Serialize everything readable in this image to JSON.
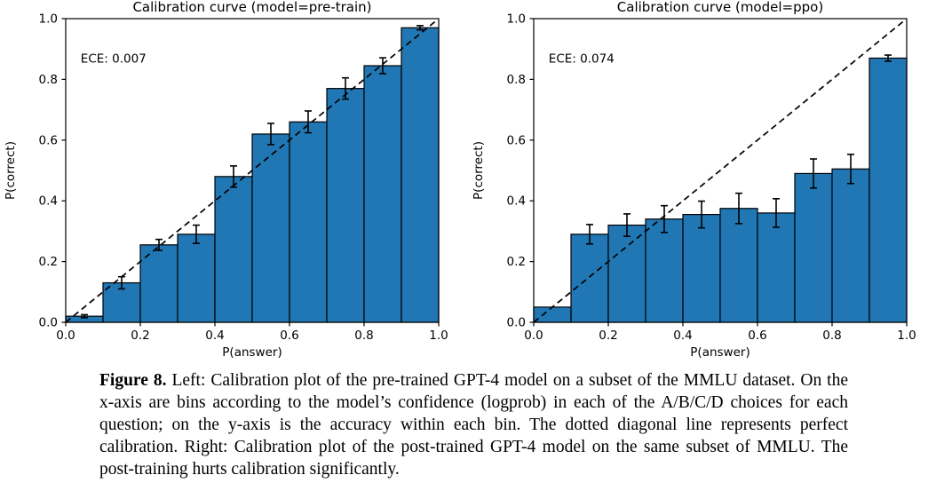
{
  "page": {
    "background": "#ffffff"
  },
  "caption": {
    "label": "Figure 8.",
    "text": "Left: Calibration plot of the pre-trained GPT-4 model on a subset of the MMLU dataset. On the x-axis are bins according to the model’s confidence (logprob) in each of the A/B/C/D choices for each question; on the y-axis is the accuracy within each bin. The dotted diagonal line represents perfect calibration. Right: Calibration plot of the post-trained GPT-4 model on the same subset of MMLU. The post-training hurts calibration significantly."
  },
  "chart_data": [
    {
      "type": "bar",
      "title": "Calibration curve (model=pre-train)",
      "annotation": "ECE: 0.007",
      "xlabel": "P(answer)",
      "ylabel": "P(correct)",
      "xlim": [
        0,
        1
      ],
      "ylim": [
        0,
        1
      ],
      "grid": false,
      "legend_position": "none",
      "diagonal_line": true,
      "bin_edges": [
        0,
        0.1,
        0.2,
        0.3,
        0.4,
        0.5,
        0.6,
        0.7,
        0.8,
        0.9,
        1.0
      ],
      "values": [
        0.02,
        0.13,
        0.255,
        0.29,
        0.48,
        0.62,
        0.66,
        0.77,
        0.845,
        0.97
      ],
      "errors": [
        0.005,
        0.02,
        0.018,
        0.03,
        0.035,
        0.035,
        0.036,
        0.035,
        0.026,
        0.007
      ],
      "xticks": [
        0,
        0.2,
        0.4,
        0.6,
        0.8,
        1.0
      ],
      "xtick_labels": [
        "0.0",
        "0.2",
        "0.4",
        "0.6",
        "0.8",
        "1.0"
      ],
      "yticks": [
        0,
        0.2,
        0.4,
        0.6,
        0.8,
        1.0
      ],
      "ytick_labels": [
        "0.0",
        "0.2",
        "0.4",
        "0.6",
        "0.8",
        "1.0"
      ],
      "bar_color": "#2077b4",
      "edge_color": "#000000"
    },
    {
      "type": "bar",
      "title": "Calibration curve (model=ppo)",
      "annotation": "ECE: 0.074",
      "xlabel": "P(answer)",
      "ylabel": "P(correct)",
      "xlim": [
        0,
        1
      ],
      "ylim": [
        0,
        1
      ],
      "grid": false,
      "legend_position": "none",
      "diagonal_line": true,
      "bin_edges": [
        0,
        0.1,
        0.2,
        0.3,
        0.4,
        0.5,
        0.6,
        0.7,
        0.8,
        0.9,
        1.0
      ],
      "values": [
        0.05,
        0.29,
        0.32,
        0.34,
        0.355,
        0.375,
        0.36,
        0.49,
        0.505,
        0.87
      ],
      "errors": [
        0,
        0.032,
        0.037,
        0.044,
        0.044,
        0.05,
        0.047,
        0.048,
        0.048,
        0.01
      ],
      "xticks": [
        0,
        0.2,
        0.4,
        0.6,
        0.8,
        1.0
      ],
      "xtick_labels": [
        "0.0",
        "0.2",
        "0.4",
        "0.6",
        "0.8",
        "1.0"
      ],
      "yticks": [
        0,
        0.2,
        0.4,
        0.6,
        0.8,
        1.0
      ],
      "ytick_labels": [
        "0.0",
        "0.2",
        "0.4",
        "0.6",
        "0.8",
        "1.0"
      ],
      "bar_color": "#2077b4",
      "edge_color": "#000000"
    }
  ]
}
